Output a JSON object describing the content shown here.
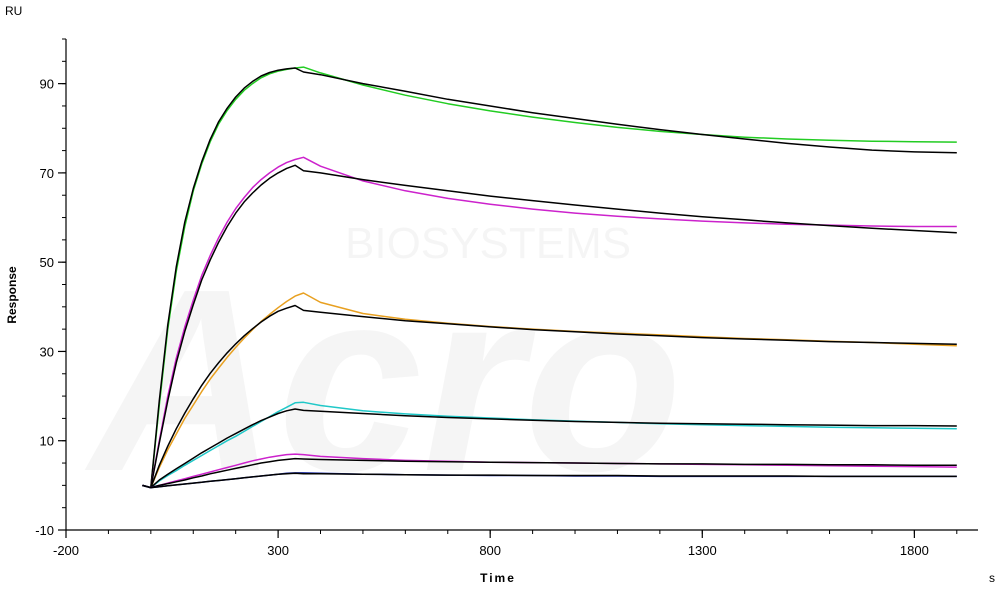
{
  "chart_data": {
    "type": "line",
    "title": "",
    "xlabel": "Time",
    "ylabel": "Response",
    "x_unit": "s",
    "y_unit": "RU",
    "xlim": [
      -200,
      1950
    ],
    "ylim": [
      -10,
      100
    ],
    "x_ticks": [
      "-200",
      "300",
      "800",
      "1300",
      "1800"
    ],
    "y_ticks": [
      "-10",
      "10",
      "30",
      "50",
      "70",
      "90"
    ],
    "x_tick_values": [
      -200,
      300,
      800,
      1300,
      1800
    ],
    "y_tick_values": [
      -10,
      10,
      30,
      50,
      70,
      90
    ],
    "grid": false,
    "legend": "none",
    "series": [
      {
        "color": "#22cc22",
        "x": [
          -20,
          0,
          20,
          40,
          60,
          80,
          100,
          120,
          140,
          160,
          180,
          200,
          220,
          240,
          260,
          280,
          300,
          320,
          340,
          360,
          400,
          500,
          600,
          700,
          800,
          900,
          1000,
          1100,
          1200,
          1300,
          1400,
          1500,
          1600,
          1700,
          1800,
          1900
        ],
        "y": [
          0,
          -0.5,
          18,
          35,
          48,
          58,
          66,
          72,
          77,
          81,
          84,
          86.5,
          88.5,
          90,
          91.3,
          92.2,
          92.8,
          93.2,
          93.5,
          93.7,
          92.4,
          89.7,
          87.4,
          85.5,
          83.9,
          82.5,
          81.3,
          80.2,
          79.3,
          78.6,
          78,
          77.6,
          77.3,
          77.1,
          77,
          76.9
        ]
      },
      {
        "color": "#000000",
        "x": [
          -20,
          0,
          20,
          40,
          60,
          80,
          100,
          120,
          140,
          160,
          180,
          200,
          220,
          240,
          260,
          280,
          300,
          320,
          340,
          360,
          400,
          500,
          600,
          700,
          800,
          900,
          1000,
          1100,
          1200,
          1300,
          1400,
          1500,
          1600,
          1700,
          1800,
          1900
        ],
        "y": [
          0,
          -0.5,
          19,
          36,
          49,
          59,
          66.5,
          72.5,
          77.5,
          81.5,
          84.5,
          87,
          89,
          90.5,
          91.7,
          92.5,
          93,
          93.3,
          93.5,
          92.6,
          92,
          90,
          88.3,
          86.5,
          85,
          83.5,
          82.2,
          80.9,
          79.7,
          78.6,
          77.6,
          76.6,
          75.8,
          75.1,
          74.7,
          74.5
        ]
      },
      {
        "color": "#cc22cc",
        "x": [
          -20,
          0,
          20,
          40,
          60,
          80,
          100,
          120,
          140,
          160,
          180,
          200,
          220,
          240,
          260,
          280,
          300,
          320,
          340,
          360,
          400,
          500,
          600,
          700,
          800,
          900,
          1000,
          1100,
          1200,
          1300,
          1400,
          1500,
          1600,
          1700,
          1800,
          1900
        ],
        "y": [
          0,
          -0.5,
          10,
          20,
          28.5,
          35.5,
          41.5,
          47,
          51.5,
          55.5,
          59,
          62,
          64.5,
          66.7,
          68.5,
          70,
          71.3,
          72.3,
          73,
          73.5,
          71.5,
          68.2,
          66,
          64.3,
          63,
          61.9,
          61,
          60.3,
          59.7,
          59.2,
          58.8,
          58.5,
          58.3,
          58.1,
          58,
          58
        ]
      },
      {
        "color": "#000000",
        "x": [
          -20,
          0,
          20,
          40,
          60,
          80,
          100,
          120,
          140,
          160,
          180,
          200,
          220,
          240,
          260,
          280,
          300,
          320,
          340,
          360,
          400,
          500,
          600,
          700,
          800,
          900,
          1000,
          1100,
          1200,
          1300,
          1400,
          1500,
          1600,
          1700,
          1800,
          1900
        ],
        "y": [
          0,
          -0.5,
          9.5,
          19,
          27.5,
          34.5,
          40.5,
          46,
          50.5,
          54.5,
          58,
          61,
          63.5,
          65.5,
          67.3,
          68.8,
          70,
          71,
          71.7,
          70.5,
          70,
          68.5,
          67.2,
          66,
          64.8,
          63.8,
          62.8,
          61.9,
          61,
          60.2,
          59.5,
          58.8,
          58.2,
          57.6,
          57.1,
          56.6
        ]
      },
      {
        "color": "#e8a020",
        "x": [
          -20,
          0,
          20,
          40,
          60,
          80,
          100,
          120,
          140,
          160,
          180,
          200,
          220,
          240,
          260,
          280,
          300,
          320,
          340,
          360,
          400,
          500,
          600,
          700,
          800,
          900,
          1000,
          1100,
          1200,
          1300,
          1400,
          1500,
          1600,
          1700,
          1800,
          1900
        ],
        "y": [
          0,
          -0.5,
          4,
          8,
          11.5,
          15,
          18,
          21,
          23.8,
          26.3,
          28.7,
          30.9,
          33,
          34.9,
          36.7,
          38.3,
          39.8,
          41.2,
          42.4,
          43.1,
          41,
          38.5,
          37.2,
          36.3,
          35.6,
          35,
          34.5,
          34.1,
          33.7,
          33.3,
          32.9,
          32.6,
          32.3,
          32,
          31.6,
          31.3
        ]
      },
      {
        "color": "#000000",
        "x": [
          -20,
          0,
          20,
          40,
          60,
          80,
          100,
          120,
          140,
          160,
          180,
          200,
          220,
          240,
          260,
          280,
          300,
          320,
          340,
          360,
          400,
          500,
          600,
          700,
          800,
          900,
          1000,
          1100,
          1200,
          1300,
          1400,
          1500,
          1600,
          1700,
          1800,
          1900
        ],
        "y": [
          0,
          -0.5,
          4.5,
          8.8,
          12.7,
          16.2,
          19.4,
          22.4,
          25.1,
          27.5,
          29.7,
          31.7,
          33.5,
          35.1,
          36.6,
          37.9,
          39,
          39.7,
          40.3,
          39.2,
          38.8,
          37.8,
          36.9,
          36.2,
          35.5,
          34.9,
          34.4,
          33.9,
          33.5,
          33.1,
          32.8,
          32.5,
          32.2,
          32,
          31.8,
          31.6
        ]
      },
      {
        "color": "#20c8c8",
        "x": [
          -20,
          0,
          20,
          40,
          60,
          80,
          100,
          120,
          140,
          160,
          180,
          200,
          220,
          240,
          260,
          280,
          300,
          320,
          340,
          360,
          400,
          500,
          600,
          700,
          800,
          900,
          1000,
          1100,
          1200,
          1300,
          1400,
          1500,
          1600,
          1700,
          1800,
          1900
        ],
        "y": [
          0,
          -0.5,
          1,
          2.2,
          3.3,
          4.5,
          5.6,
          6.7,
          7.8,
          8.9,
          10,
          11,
          12.1,
          13.2,
          14.3,
          15.4,
          16.5,
          17.5,
          18.5,
          18.6,
          17.9,
          16.7,
          16,
          15.5,
          15.1,
          14.7,
          14.4,
          14.1,
          13.8,
          13.6,
          13.4,
          13.2,
          13,
          12.9,
          12.8,
          12.7
        ]
      },
      {
        "color": "#000000",
        "x": [
          -20,
          0,
          20,
          40,
          60,
          80,
          100,
          120,
          140,
          160,
          180,
          200,
          220,
          240,
          260,
          280,
          300,
          320,
          340,
          360,
          400,
          500,
          600,
          700,
          800,
          900,
          1000,
          1100,
          1200,
          1300,
          1400,
          1500,
          1600,
          1700,
          1800,
          1900
        ],
        "y": [
          0,
          -0.5,
          1.2,
          2.5,
          3.7,
          4.9,
          6.1,
          7.3,
          8.4,
          9.5,
          10.6,
          11.6,
          12.6,
          13.6,
          14.5,
          15.3,
          16.1,
          16.7,
          17.1,
          16.8,
          16.6,
          16.1,
          15.6,
          15.2,
          14.9,
          14.6,
          14.3,
          14.1,
          13.9,
          13.8,
          13.7,
          13.6,
          13.5,
          13.4,
          13.4,
          13.3
        ]
      },
      {
        "color": "#cc22cc",
        "x": [
          -20,
          0,
          20,
          40,
          60,
          80,
          100,
          120,
          140,
          160,
          180,
          200,
          220,
          240,
          260,
          280,
          300,
          320,
          340,
          360,
          400,
          500,
          600,
          700,
          800,
          900,
          1000,
          1100,
          1200,
          1300,
          1400,
          1500,
          1600,
          1700,
          1800,
          1900
        ],
        "y": [
          0,
          -0.5,
          0,
          0.5,
          1,
          1.5,
          2,
          2.5,
          3,
          3.5,
          4,
          4.5,
          5,
          5.5,
          5.9,
          6.3,
          6.6,
          6.9,
          7,
          6.9,
          6.5,
          6,
          5.6,
          5.4,
          5.2,
          5.1,
          5,
          4.9,
          4.8,
          4.7,
          4.6,
          4.5,
          4.4,
          4.3,
          4.2,
          4.1
        ]
      },
      {
        "color": "#000000",
        "x": [
          -20,
          0,
          20,
          40,
          60,
          80,
          100,
          120,
          140,
          160,
          180,
          200,
          220,
          240,
          260,
          280,
          300,
          320,
          340,
          360,
          400,
          500,
          600,
          700,
          800,
          900,
          1000,
          1100,
          1200,
          1300,
          1400,
          1500,
          1600,
          1700,
          1800,
          1900
        ],
        "y": [
          0,
          -0.5,
          0,
          0.4,
          0.8,
          1.2,
          1.7,
          2.1,
          2.6,
          3,
          3.4,
          3.8,
          4.2,
          4.6,
          5,
          5.3,
          5.6,
          5.8,
          6,
          5.9,
          5.8,
          5.6,
          5.4,
          5.3,
          5.2,
          5.1,
          5,
          4.9,
          4.8,
          4.8,
          4.7,
          4.7,
          4.6,
          4.6,
          4.5,
          4.5
        ]
      },
      {
        "color": "#1a2aa0",
        "x": [
          -20,
          0,
          20,
          40,
          60,
          80,
          100,
          120,
          140,
          160,
          180,
          200,
          220,
          240,
          260,
          280,
          300,
          320,
          340,
          360,
          400,
          500,
          600,
          700,
          800,
          900,
          1000,
          1100,
          1200,
          1300,
          1400,
          1500,
          1600,
          1700,
          1800,
          1900
        ],
        "y": [
          0,
          -0.5,
          -0.3,
          -0.1,
          0.1,
          0.3,
          0.5,
          0.7,
          0.9,
          1.1,
          1.3,
          1.5,
          1.7,
          1.9,
          2.1,
          2.3,
          2.5,
          2.7,
          2.8,
          2.8,
          2.7,
          2.5,
          2.4,
          2.3,
          2.2,
          2.2,
          2.1,
          2.1,
          2,
          2,
          2,
          2,
          2,
          2,
          2,
          2
        ]
      },
      {
        "color": "#000000",
        "x": [
          -20,
          0,
          20,
          40,
          60,
          80,
          100,
          120,
          140,
          160,
          180,
          200,
          220,
          240,
          260,
          280,
          300,
          320,
          340,
          360,
          400,
          500,
          600,
          700,
          800,
          900,
          1000,
          1100,
          1200,
          1300,
          1400,
          1500,
          1600,
          1700,
          1800,
          1900
        ],
        "y": [
          0,
          -0.5,
          -0.3,
          -0.1,
          0.1,
          0.3,
          0.5,
          0.7,
          0.9,
          1.1,
          1.3,
          1.5,
          1.7,
          1.9,
          2.1,
          2.3,
          2.5,
          2.6,
          2.7,
          2.6,
          2.6,
          2.5,
          2.4,
          2.3,
          2.3,
          2.2,
          2.2,
          2.2,
          2.1,
          2.1,
          2.1,
          2.1,
          2,
          2,
          2,
          2
        ]
      }
    ]
  },
  "watermark": {
    "logo_text": "Acro",
    "sub_text": "BIOSYSTEMS"
  }
}
